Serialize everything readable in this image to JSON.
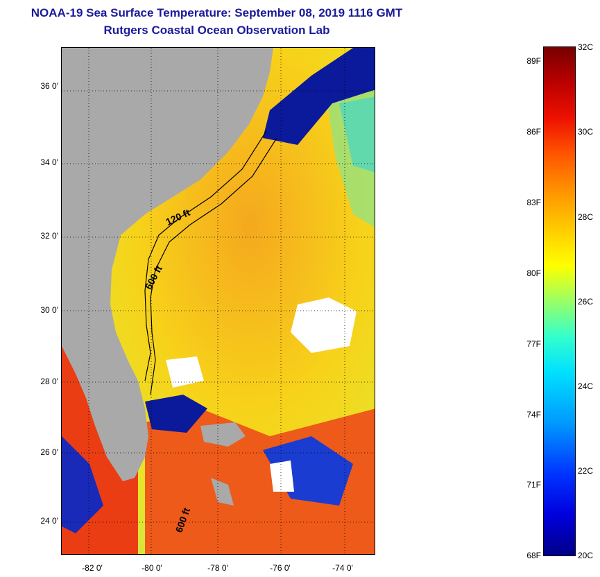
{
  "header": {
    "title": "NOAA-19 Sea Surface Temperature:  September 08, 2019 1116 GMT",
    "subtitle": "Rutgers Coastal Ocean Observation Lab"
  },
  "map": {
    "lat_labels": [
      "36 0'",
      "34 0'",
      "32 0'",
      "30 0'",
      "28 0'",
      "26 0'",
      "24 0'"
    ],
    "lon_labels": [
      "-82 0'",
      "-80 0'",
      "-78 0'",
      "-76 0'",
      "-74 0'"
    ],
    "contour_labels": {
      "shelf_120": "120 ft",
      "slope_600_north": "600 ft",
      "slope_600_south": "600 ft"
    },
    "colors": {
      "land": "#a9a9a9",
      "cloud": "#ffffff",
      "cold_water": "#0a1a9a",
      "warm_water": "#f2c21a",
      "hot_water": "#e8401a",
      "near_shore": "#66e0c0"
    }
  },
  "colorbar": {
    "fahrenheit_labels": [
      "89F",
      "86F",
      "83F",
      "80F",
      "77F",
      "74F",
      "71F",
      "68F"
    ],
    "celsius_labels": [
      "32C",
      "30C",
      "28C",
      "26C",
      "24C",
      "22C",
      "20C"
    ]
  }
}
